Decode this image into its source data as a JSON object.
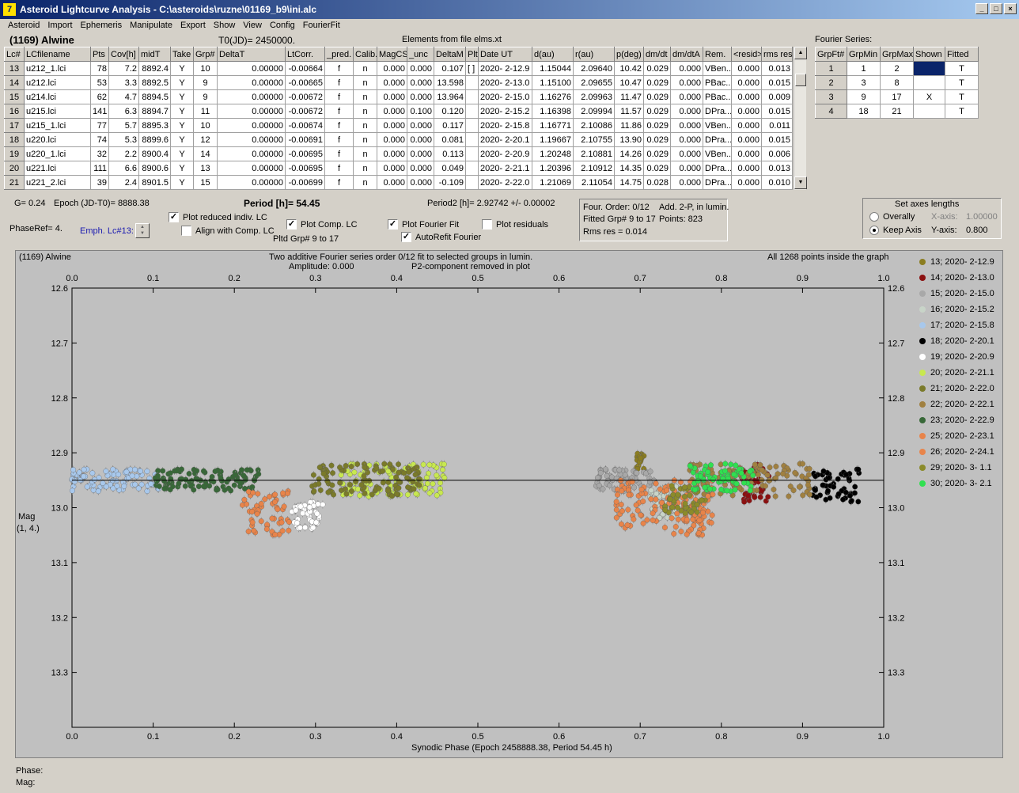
{
  "window": {
    "title": "Asteroid Lightcurve Analysis - C:\\asteroids\\ruzne\\01169_b9\\ini.alc",
    "icon": "app-icon",
    "minimize": "_",
    "maximize": "□",
    "close": "×"
  },
  "menu": [
    "Asteroid",
    "Import",
    "Ephemeris",
    "Manipulate",
    "Export",
    "Show",
    "View",
    "Config",
    "FourierFit"
  ],
  "header": {
    "asteroid": "(1169) Alwine",
    "t0": "T0(JD)= 2450000.",
    "elements": "Elements from file elms.xt"
  },
  "table": {
    "columns": [
      "Lc#",
      "LCfilename",
      "Pts",
      "Cov[h]",
      "midT",
      "Take",
      "Grp#",
      "DeltaT",
      "LtCorr.",
      "_pred.",
      "Calib.",
      "MagCS",
      "_unc",
      "DeltaM",
      "Plt",
      "Date UT",
      "d(au)",
      "r(au)",
      "p(deg)",
      "dm/dt",
      "dm/dtA",
      "Rem.",
      "<resid>",
      "rms res"
    ],
    "rows": [
      [
        "13",
        "u212_1.lci",
        "78",
        "7.2",
        "8892.4",
        "Y",
        "10",
        "0.00000",
        "-0.00664",
        "f",
        "n",
        "0.000",
        "0.000",
        "0.107",
        "[ ]",
        "2020- 2-12.9",
        "1.15044",
        "2.09640",
        "10.42",
        "0.029",
        "0.000",
        "VBen...",
        "0.000",
        "0.013"
      ],
      [
        "14",
        "u212.lci",
        "53",
        "3.3",
        "8892.5",
        "Y",
        "9",
        "0.00000",
        "-0.00665",
        "f",
        "n",
        "0.000",
        "0.000",
        "13.598",
        "",
        "2020- 2-13.0",
        "1.15100",
        "2.09655",
        "10.47",
        "0.029",
        "0.000",
        "PBac...",
        "0.000",
        "0.015"
      ],
      [
        "15",
        "u214.lci",
        "62",
        "4.7",
        "8894.5",
        "Y",
        "9",
        "0.00000",
        "-0.00672",
        "f",
        "n",
        "0.000",
        "0.000",
        "13.964",
        "",
        "2020- 2-15.0",
        "1.16276",
        "2.09963",
        "11.47",
        "0.029",
        "0.000",
        "PBac...",
        "0.000",
        "0.009"
      ],
      [
        "16",
        "u215.lci",
        "141",
        "6.3",
        "8894.7",
        "Y",
        "11",
        "0.00000",
        "-0.00672",
        "f",
        "n",
        "0.000",
        "0.100",
        "0.120",
        "",
        "2020- 2-15.2",
        "1.16398",
        "2.09994",
        "11.57",
        "0.029",
        "0.000",
        "DPra...",
        "0.000",
        "0.015"
      ],
      [
        "17",
        "u215_1.lci",
        "77",
        "5.7",
        "8895.3",
        "Y",
        "10",
        "0.00000",
        "-0.00674",
        "f",
        "n",
        "0.000",
        "0.000",
        "0.117",
        "",
        "2020- 2-15.8",
        "1.16771",
        "2.10086",
        "11.86",
        "0.029",
        "0.000",
        "VBen...",
        "0.000",
        "0.011"
      ],
      [
        "18",
        "u220.lci",
        "74",
        "5.3",
        "8899.6",
        "Y",
        "12",
        "0.00000",
        "-0.00691",
        "f",
        "n",
        "0.000",
        "0.000",
        "0.081",
        "",
        "2020- 2-20.1",
        "1.19667",
        "2.10755",
        "13.90",
        "0.029",
        "0.000",
        "DPra...",
        "0.000",
        "0.015"
      ],
      [
        "19",
        "u220_1.lci",
        "32",
        "2.2",
        "8900.4",
        "Y",
        "14",
        "0.00000",
        "-0.00695",
        "f",
        "n",
        "0.000",
        "0.000",
        "0.113",
        "",
        "2020- 2-20.9",
        "1.20248",
        "2.10881",
        "14.26",
        "0.029",
        "0.000",
        "VBen...",
        "0.000",
        "0.006"
      ],
      [
        "20",
        "u221.lci",
        "111",
        "6.6",
        "8900.6",
        "Y",
        "13",
        "0.00000",
        "-0.00695",
        "f",
        "n",
        "0.000",
        "0.000",
        "0.049",
        "",
        "2020- 2-21.1",
        "1.20396",
        "2.10912",
        "14.35",
        "0.029",
        "0.000",
        "DPra...",
        "0.000",
        "0.013"
      ],
      [
        "21",
        "u221_2.lci",
        "39",
        "2.4",
        "8901.5",
        "Y",
        "15",
        "0.00000",
        "-0.00699",
        "f",
        "n",
        "0.000",
        "0.000",
        "-0.109",
        "",
        "2020- 2-22.0",
        "1.21069",
        "2.11054",
        "14.75",
        "0.028",
        "0.000",
        "DPra...",
        "0.000",
        "0.010"
      ]
    ]
  },
  "fourier": {
    "label": "Fourier Series:",
    "columns": [
      "GrpFt#",
      "GrpMin",
      "GrpMax",
      "Shown",
      "Fitted"
    ],
    "rows": [
      [
        "1",
        "1",
        "2",
        "",
        "T"
      ],
      [
        "2",
        "3",
        "8",
        "",
        "T"
      ],
      [
        "3",
        "9",
        "17",
        "X",
        "T"
      ],
      [
        "4",
        "18",
        "21",
        "",
        "T"
      ]
    ]
  },
  "info": {
    "g": "G= 0.24",
    "epoch": "Epoch (JD-T0)= 8888.38",
    "period": "Period [h]= 54.45",
    "period2": "Period2 [h]= 2.92742 +/- 0.00002",
    "phaseref": "PhaseRef= 4.",
    "emph": "Emph. Lc#13:",
    "pltd_grp": "Pltd Grp#  9   to   17"
  },
  "options": {
    "reduced": "Plot reduced indiv. LC",
    "align": "Align with Comp. LC",
    "comp": "Plot Comp. LC",
    "fourier_fit": "Plot Fourier Fit",
    "autorefit": "AutoRefit Fourier",
    "residuals": "Plot residuals",
    "check": "✓"
  },
  "fit": {
    "order": "Four. Order:  0/12",
    "add": "Add. 2-P, in lumin.",
    "fitted": "Fitted Grp# 9 to 17",
    "points": "Points: 823",
    "rms": "Rms res      = 0.014"
  },
  "axes": {
    "title": "Set axes lengths",
    "overally": "Overally",
    "keep": "Keep Axis",
    "xaxis": "X-axis:",
    "xval": "1.00000",
    "yaxis": "Y-axis:",
    "yval": "0.800",
    "selected": "keep"
  },
  "plot": {
    "object": "(1169) Alwine",
    "title1": "Two additive Fourier series order 0/12 fit to selected groups in lumin.",
    "title2_a": "Amplitude: 0.000",
    "title2_b": "P2-component removed in plot",
    "count": "All 1268 points inside the graph",
    "ylabel1": "Mag",
    "ylabel2": "(1, 4.)",
    "xlabel": "Synodic Phase (Epoch 2458888.38, Period 54.45 h)"
  },
  "chart_data": {
    "type": "scatter",
    "xlim": [
      0,
      1
    ],
    "ylim": [
      13.4,
      12.6
    ],
    "x_ticks": [
      "0.0",
      "0.1",
      "0.2",
      "0.3",
      "0.4",
      "0.5",
      "0.6",
      "0.7",
      "0.8",
      "0.9",
      "1.0"
    ],
    "y_ticks": [
      "12.6",
      "12.7",
      "12.8",
      "12.9",
      "13.0",
      "13.1",
      "13.2",
      "13.3"
    ],
    "fit_line": 12.95,
    "series": [
      {
        "name": "13; 2020- 2-12.9",
        "color": "#8b7d20",
        "ranges": [
          [
            0.695,
            0.705,
            12.9,
            12.93
          ]
        ]
      },
      {
        "name": "14; 2020- 2-13.0",
        "color": "#8b1010",
        "ranges": [
          [
            0.825,
            0.86,
            12.92,
            12.99
          ]
        ]
      },
      {
        "name": "15; 2020- 2-15.0",
        "color": "#a8a8a8",
        "ranges": [
          [
            0.645,
            0.72,
            12.93,
            12.97
          ]
        ]
      },
      {
        "name": "16; 2020- 2-15.2",
        "color": "#c8d4c8",
        "ranges": [
          [
            0.71,
            0.75,
            12.96,
            13.02
          ]
        ]
      },
      {
        "name": "17; 2020- 2-15.8",
        "color": "#a8c8ec",
        "ranges": [
          [
            0.0,
            0.11,
            12.93,
            12.97
          ]
        ]
      },
      {
        "name": "18; 2020- 2-20.1",
        "color": "#000000",
        "ranges": [
          [
            0.91,
            0.97,
            12.93,
            12.99
          ]
        ]
      },
      {
        "name": "19; 2020- 2-20.9",
        "color": "#ffffff",
        "ranges": [
          [
            0.27,
            0.31,
            12.99,
            13.04
          ]
        ]
      },
      {
        "name": "20; 2020- 2-21.1",
        "color": "#c8e850",
        "ranges": [
          [
            0.33,
            0.46,
            12.92,
            12.98
          ]
        ]
      },
      {
        "name": "21; 2020- 2-22.0",
        "color": "#7a7a2a",
        "ranges": [
          [
            0.295,
            0.43,
            12.92,
            12.98
          ]
        ]
      },
      {
        "name": "22; 2020- 2-22.1",
        "color": "#a08040",
        "ranges": [
          [
            0.76,
            0.91,
            12.92,
            12.98
          ]
        ]
      },
      {
        "name": "23; 2020- 2-22.9",
        "color": "#386838",
        "ranges": [
          [
            0.1,
            0.23,
            12.93,
            12.97
          ]
        ]
      },
      {
        "name": "25; 2020- 2-23.1",
        "color": "#e8844a",
        "ranges": [
          [
            0.21,
            0.27,
            12.97,
            13.05
          ],
          [
            0.67,
            0.79,
            12.95,
            13.04
          ]
        ]
      },
      {
        "name": "26; 2020- 2-24.1",
        "color": "#e8844a",
        "ranges": [
          [
            0.74,
            0.78,
            12.99,
            13.05
          ]
        ]
      },
      {
        "name": "29; 2020- 3- 1.1",
        "color": "#8b8b2a",
        "ranges": [
          [
            0.73,
            0.78,
            12.96,
            13.01
          ]
        ]
      },
      {
        "name": "30; 2020- 3- 2.1",
        "color": "#30e050",
        "ranges": [
          [
            0.76,
            0.84,
            12.92,
            12.97
          ]
        ]
      }
    ]
  },
  "status": {
    "phase": "Phase:",
    "mag": "Mag:"
  }
}
